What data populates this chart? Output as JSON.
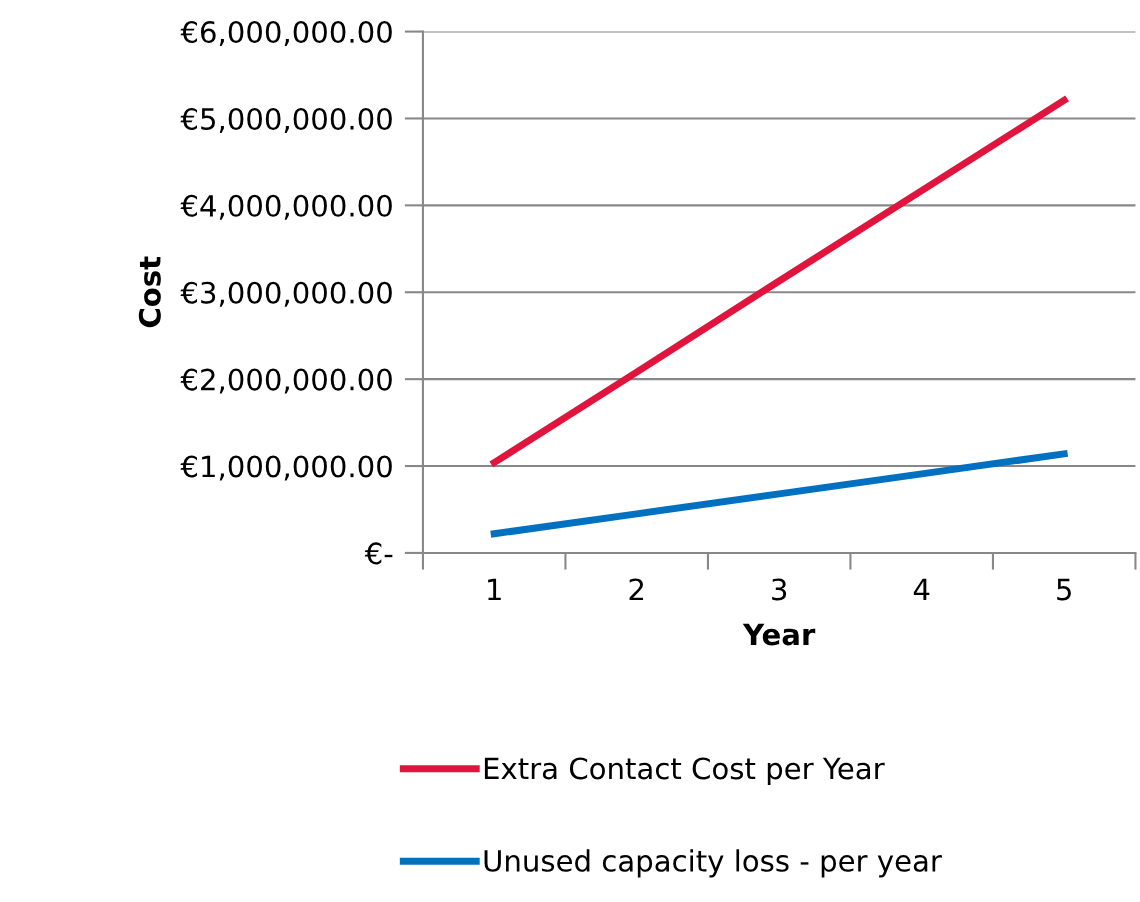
{
  "chart_data": {
    "type": "line",
    "xlabel": "Year",
    "ylabel": "Cost",
    "categories": [
      "1",
      "2",
      "3",
      "4",
      "5"
    ],
    "series": [
      {
        "name": "Extra Contact Cost per Year",
        "color": "#e0143c",
        "values": [
          1040000,
          2080000,
          3130000,
          4170000,
          5210000
        ]
      },
      {
        "name": "Unused capacity loss - per year",
        "color": "#0070c0",
        "values": [
          220000,
          450000,
          680000,
          910000,
          1140000
        ]
      }
    ],
    "ylim": [
      0,
      6000000
    ],
    "yticks": [
      {
        "value": 0,
        "label": "€-"
      },
      {
        "value": 1000000,
        "label": "€1,000,000.00"
      },
      {
        "value": 2000000,
        "label": "€2,000,000.00"
      },
      {
        "value": 3000000,
        "label": "€3,000,000.00"
      },
      {
        "value": 4000000,
        "label": "€4,000,000.00"
      },
      {
        "value": 5000000,
        "label": "€5,000,000.00"
      },
      {
        "value": 6000000,
        "label": "€6,000,000.00"
      }
    ],
    "grid": "y",
    "legend": "bottom",
    "marker": "none",
    "line_style": "solid"
  }
}
